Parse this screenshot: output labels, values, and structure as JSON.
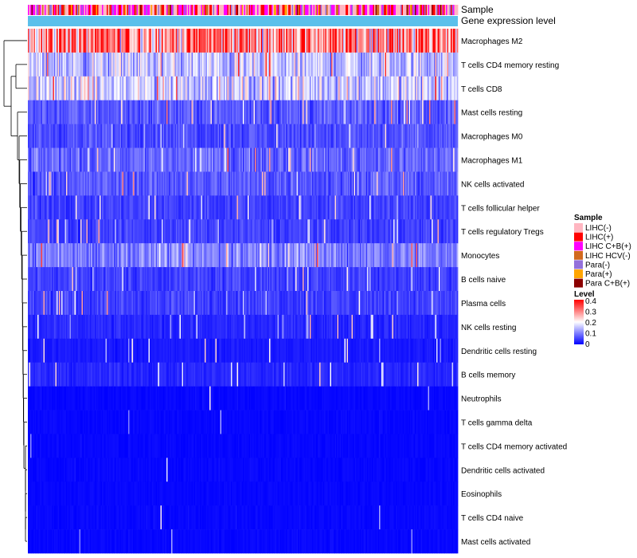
{
  "chart_data": {
    "type": "heatmap",
    "title": "",
    "annotation_tracks": [
      "Sample",
      "Gene expression level"
    ],
    "rows": [
      {
        "name": "Macrophages M2",
        "mean": 0.3
      },
      {
        "name": "T cells CD4 memory resting",
        "mean": 0.15
      },
      {
        "name": "T cells CD8",
        "mean": 0.16
      },
      {
        "name": "Mast cells resting",
        "mean": 0.07
      },
      {
        "name": "Macrophages M0",
        "mean": 0.06
      },
      {
        "name": "Macrophages M1",
        "mean": 0.08
      },
      {
        "name": "NK cells activated",
        "mean": 0.07
      },
      {
        "name": "T cells follicular helper",
        "mean": 0.05
      },
      {
        "name": "T cells regulatory  Tregs",
        "mean": 0.05
      },
      {
        "name": "Monocytes",
        "mean": 0.1
      },
      {
        "name": "B cells naive",
        "mean": 0.05
      },
      {
        "name": "Plasma cells",
        "mean": 0.05
      },
      {
        "name": "NK cells resting",
        "mean": 0.03
      },
      {
        "name": "Dendritic cells resting",
        "mean": 0.02
      },
      {
        "name": "B cells memory",
        "mean": 0.03
      },
      {
        "name": "Neutrophils",
        "mean": 0.01
      },
      {
        "name": "T cells gamma delta",
        "mean": 0.01
      },
      {
        "name": "T cells CD4 memory activated",
        "mean": 0.01
      },
      {
        "name": "Dendritic cells activated",
        "mean": 0.01
      },
      {
        "name": "Eosinophils",
        "mean": 0.005
      },
      {
        "name": "T cells CD4 naive",
        "mean": 0.01
      },
      {
        "name": "Mast cells activated",
        "mean": 0.01
      }
    ],
    "sample_legend": {
      "title": "Sample",
      "items": [
        {
          "label": "LIHC(-)",
          "color": "#FFB6C1"
        },
        {
          "label": "LIHC(+)",
          "color": "#FF0000"
        },
        {
          "label": "LIHC C+B(+)",
          "color": "#FF00FF"
        },
        {
          "label": "LIHC HCV(-)",
          "color": "#D2691E"
        },
        {
          "label": "Para(-)",
          "color": "#9370DB"
        },
        {
          "label": "Para(+)",
          "color": "#FFA500"
        },
        {
          "label": "Para C+B(+)",
          "color": "#8B0000"
        }
      ]
    },
    "level_legend": {
      "title": "Level",
      "ticks": [
        "0.4",
        "0.3",
        "0.2",
        "0.1",
        "0"
      ],
      "range": [
        0,
        0.4
      ],
      "colors": [
        "#0000FF",
        "#FFFFFF",
        "#FF0000"
      ]
    },
    "expression_track_color": "#5BC0EB"
  }
}
